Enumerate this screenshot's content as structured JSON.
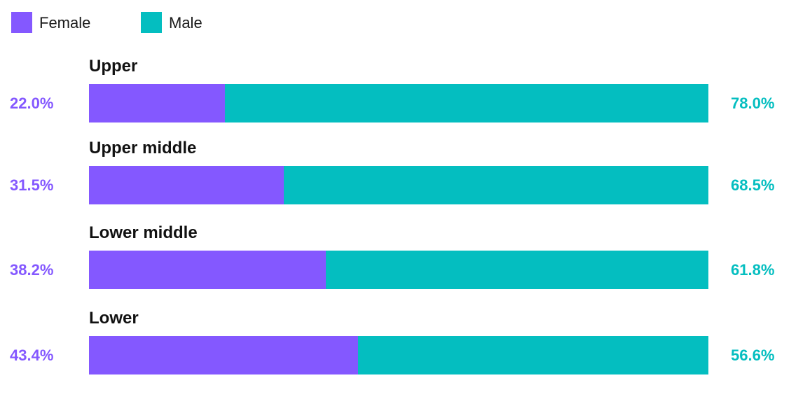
{
  "colors": {
    "female": "#8458ff",
    "male": "#04bec0"
  },
  "legend": [
    {
      "label": "Female",
      "color_key": "female"
    },
    {
      "label": "Male",
      "color_key": "male"
    }
  ],
  "chart_data": {
    "type": "bar",
    "orientation": "horizontal",
    "stacked": true,
    "categories": [
      "Upper",
      "Upper middle",
      "Lower middle",
      "Lower"
    ],
    "series": [
      {
        "name": "Female",
        "values": [
          22.0,
          31.5,
          38.2,
          43.4
        ],
        "labels": [
          "22.0%",
          "31.5%",
          "38.2%",
          "43.4%"
        ]
      },
      {
        "name": "Male",
        "values": [
          78.0,
          68.5,
          61.8,
          56.6
        ],
        "labels": [
          "78.0%",
          "68.5%",
          "61.8%",
          "56.6%"
        ]
      }
    ],
    "xlim": [
      0,
      100
    ],
    "unit": "%",
    "legend_position": "top-left",
    "grid": false
  }
}
